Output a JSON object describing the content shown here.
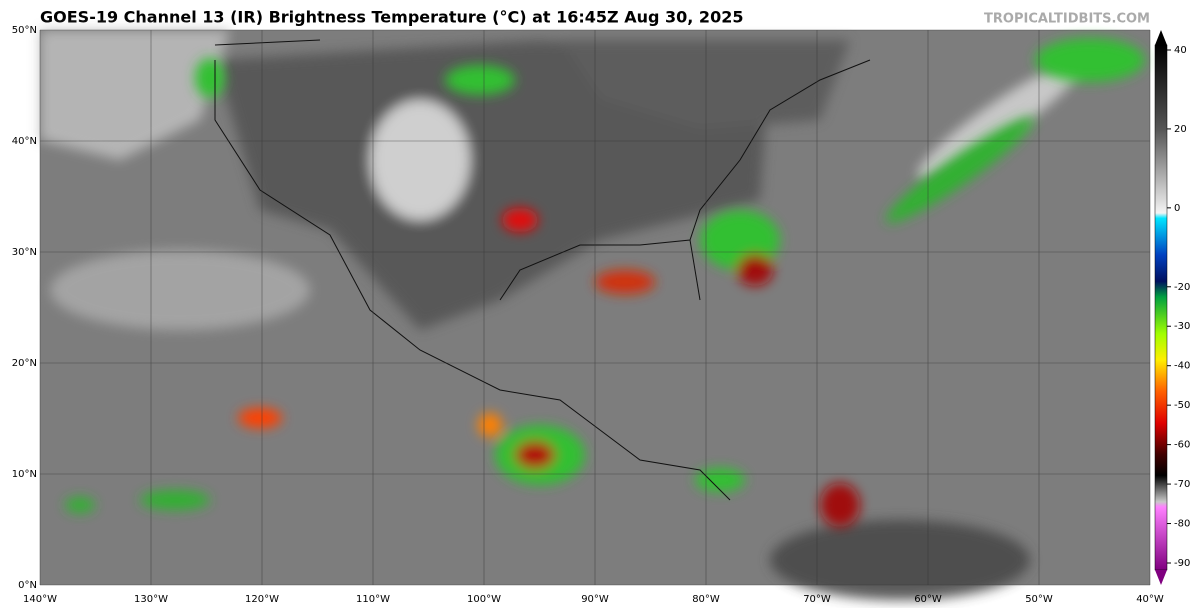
{
  "header": {
    "title": "GOES-19 Channel 13 (IR) Brightness Temperature (°C) at 16:45Z Aug 30, 2025",
    "credit": "TROPICALTIDBITS.COM"
  },
  "map": {
    "lat_labels": [
      "50°N",
      "40°N",
      "30°N",
      "20°N",
      "10°N",
      "0°N"
    ],
    "lon_labels": [
      "140°W",
      "130°W",
      "120°W",
      "110°W",
      "100°W",
      "90°W",
      "80°W",
      "70°W",
      "60°W",
      "50°W",
      "40°W"
    ]
  },
  "colorbar": {
    "ticks": [
      40,
      20,
      0,
      -20,
      -30,
      -40,
      -50,
      -60,
      -70,
      -80,
      -90
    ]
  }
}
